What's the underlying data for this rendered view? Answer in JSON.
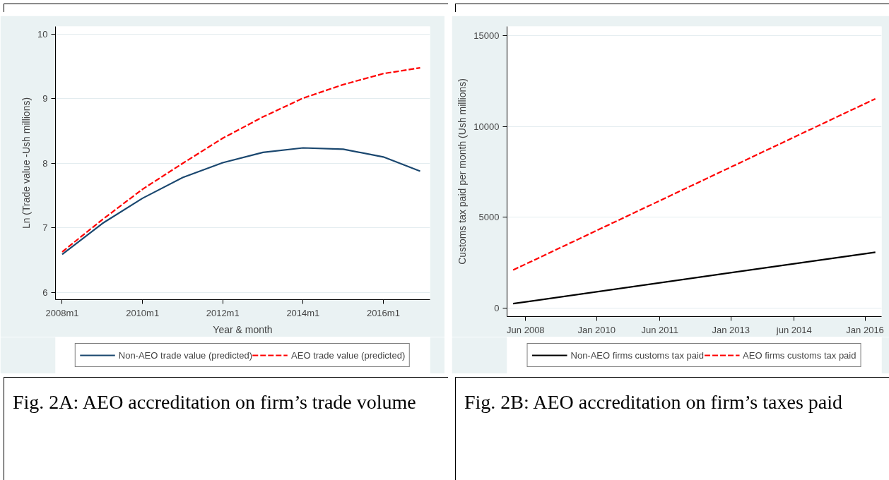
{
  "chart_data": [
    {
      "type": "line",
      "xlabel": "Year & month",
      "ylabel": "Ln (Trade value -Ush millions)",
      "x": [
        "2008-01",
        "2009-01",
        "2010-01",
        "2011-01",
        "2012-01",
        "2013-01",
        "2014-01",
        "2015-01",
        "2016-01",
        "2016-12"
      ],
      "series": [
        {
          "name": "Non-AEO trade value (predicted)",
          "color": "#1a476f",
          "line_style": "solid",
          "values": [
            6.59,
            7.07,
            7.46,
            7.78,
            8.01,
            8.17,
            8.24,
            8.22,
            8.1,
            7.88
          ]
        },
        {
          "name": "AEO trade value (predicted)",
          "color": "#ff0000",
          "line_style": "dashed",
          "values": [
            6.63,
            7.13,
            7.6,
            8.0,
            8.39,
            8.72,
            9.01,
            9.22,
            9.39,
            9.48
          ]
        }
      ],
      "xlim": [
        "2007-11",
        "2017-03"
      ],
      "ylim": [
        5.89,
        10.12
      ],
      "xticks": [
        {
          "value": "2008-01",
          "label": "2008m1"
        },
        {
          "value": "2010-01",
          "label": "2010m1"
        },
        {
          "value": "2012-01",
          "label": "2012m1"
        },
        {
          "value": "2014-01",
          "label": "2014m1"
        },
        {
          "value": "2016-01",
          "label": "2016m1"
        }
      ],
      "yticks": [
        6,
        7,
        8,
        9,
        10
      ],
      "grid": "y",
      "legend": "bottom",
      "annotations": [
        "Fig. 2A: AEO accreditation on firm’s trade volume"
      ]
    },
    {
      "type": "line",
      "ylabel": "Customs tax paid per month (Ush millions)",
      "x": [
        "2008-02-20",
        "2016-03-25"
      ],
      "series": [
        {
          "name": "Non-AEO firms customs tax paid",
          "color": "#000000",
          "line_style": "solid",
          "values": [
            237,
            3070
          ]
        },
        {
          "name": "AEO firms customs tax paid",
          "color": "#ff0000",
          "line_style": "dashed",
          "values": [
            2090,
            11520
          ]
        }
      ],
      "xlim": [
        "2008-01-01",
        "2016-05-15"
      ],
      "ylim": [
        -475,
        15500
      ],
      "xticks": [
        {
          "value": "2008-06-01",
          "label": "Jun 2008"
        },
        {
          "value": "2010-01-01",
          "label": "Jan 2010"
        },
        {
          "value": "2011-06-01",
          "label": "Jun 2011"
        },
        {
          "value": "2013-01-01",
          "label": "Jan 2013"
        },
        {
          "value": "2014-06-01",
          "label": "jun 2014"
        },
        {
          "value": "2016-01-01",
          "label": "Jan 2016"
        }
      ],
      "yticks": [
        0,
        5000,
        10000,
        15000
      ],
      "grid": "y",
      "legend": "bottom",
      "annotations": [
        "Fig. 2B: AEO accreditation on firm’s taxes paid"
      ]
    }
  ]
}
